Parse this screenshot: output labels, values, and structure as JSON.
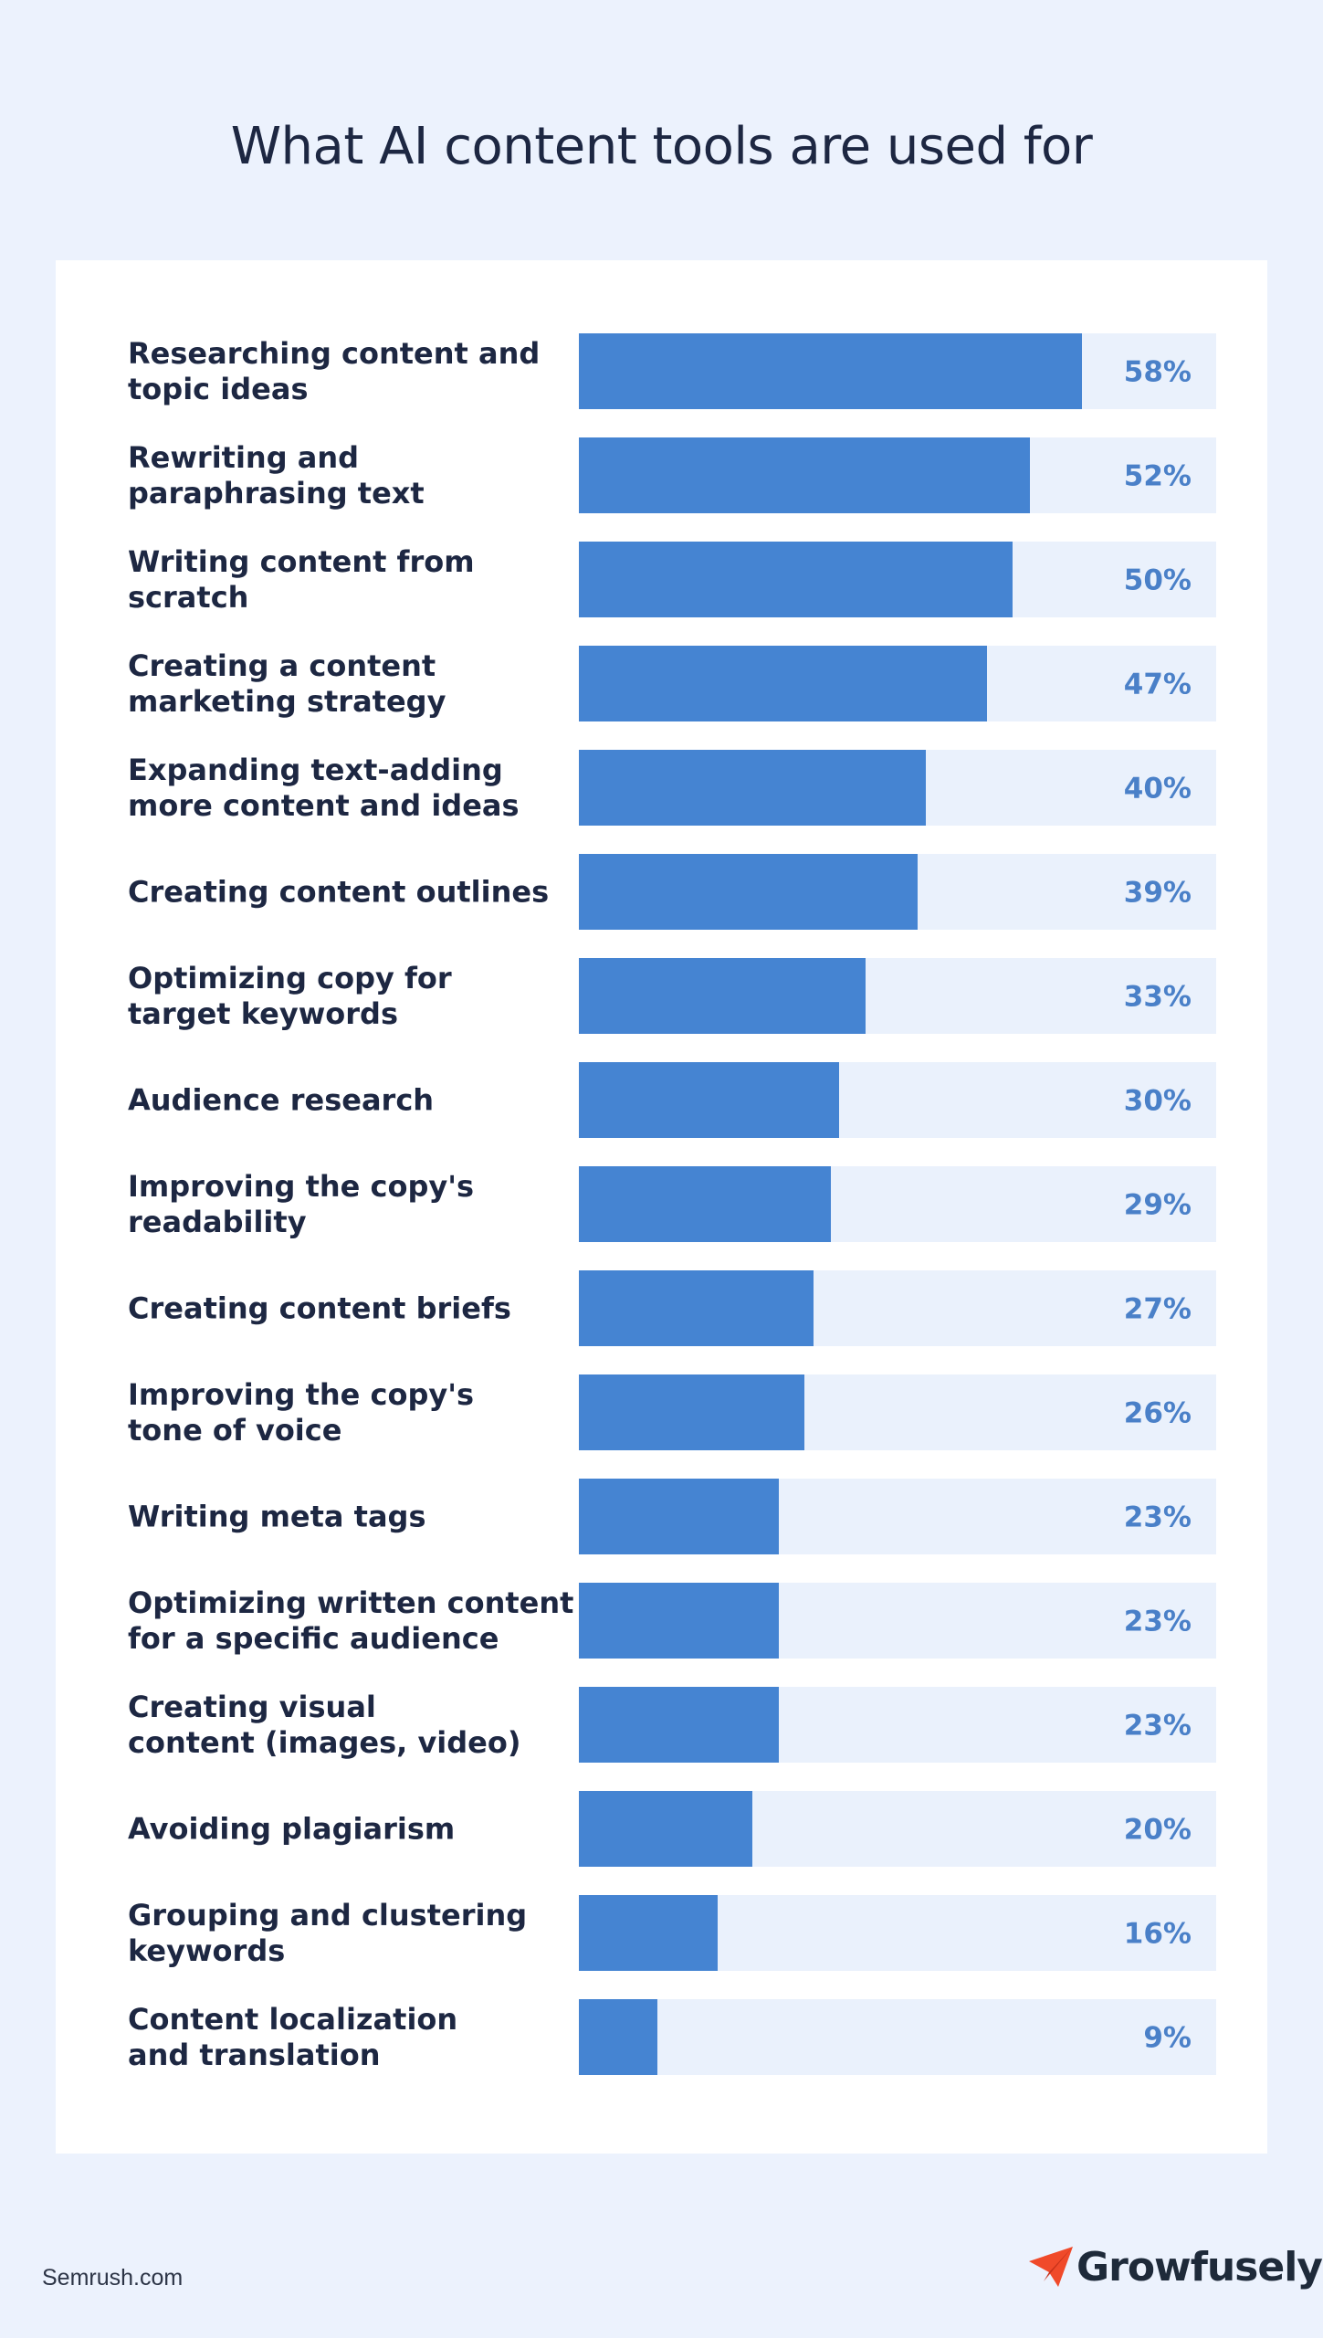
{
  "header": {
    "title": "What AI content tools are used for"
  },
  "footer": {
    "source": "Semrush.com",
    "brand": "Growfusely"
  },
  "colors": {
    "bar": "#4584d2",
    "track": "#eaf1fc",
    "value_text": "#4a80c8",
    "label_text": "#1d2742",
    "brand_accent": "#f04a2a"
  },
  "icons": {
    "brand_logo": "paper-plane-icon"
  },
  "chart_data": {
    "type": "bar",
    "orientation": "horizontal",
    "title": "What AI content tools are used for",
    "xlim": [
      0,
      100
    ],
    "grid": false,
    "categories": [
      [
        "Researching content and",
        "topic ideas"
      ],
      [
        "Rewriting and",
        "paraphrasing text"
      ],
      [
        "Writing content from",
        "scratch"
      ],
      [
        "Creating a content",
        "marketing strategy"
      ],
      [
        "Expanding text-adding",
        "more content and ideas"
      ],
      [
        "Creating content outlines"
      ],
      [
        "Optimizing copy for",
        "target keywords"
      ],
      [
        "Audience research"
      ],
      [
        "Improving the copy's",
        "readability"
      ],
      [
        "Creating content briefs"
      ],
      [
        "Improving the copy's",
        "tone of voice"
      ],
      [
        "Writing meta tags"
      ],
      [
        "Optimizing written content",
        "for a specific audience"
      ],
      [
        "Creating visual",
        "content (images, video)"
      ],
      [
        "Avoiding plagiarism"
      ],
      [
        "Grouping and clustering",
        "keywords"
      ],
      [
        "Content localization",
        "and translation"
      ]
    ],
    "values": [
      58,
      52,
      50,
      47,
      40,
      39,
      33,
      30,
      29,
      27,
      26,
      23,
      23,
      23,
      20,
      16,
      9
    ],
    "value_labels": [
      "58%",
      "52%",
      "50%",
      "47%",
      "40%",
      "39%",
      "33%",
      "30%",
      "29%",
      "27%",
      "26%",
      "23%",
      "23%",
      "23%",
      "20%",
      "16%",
      "9%"
    ]
  }
}
